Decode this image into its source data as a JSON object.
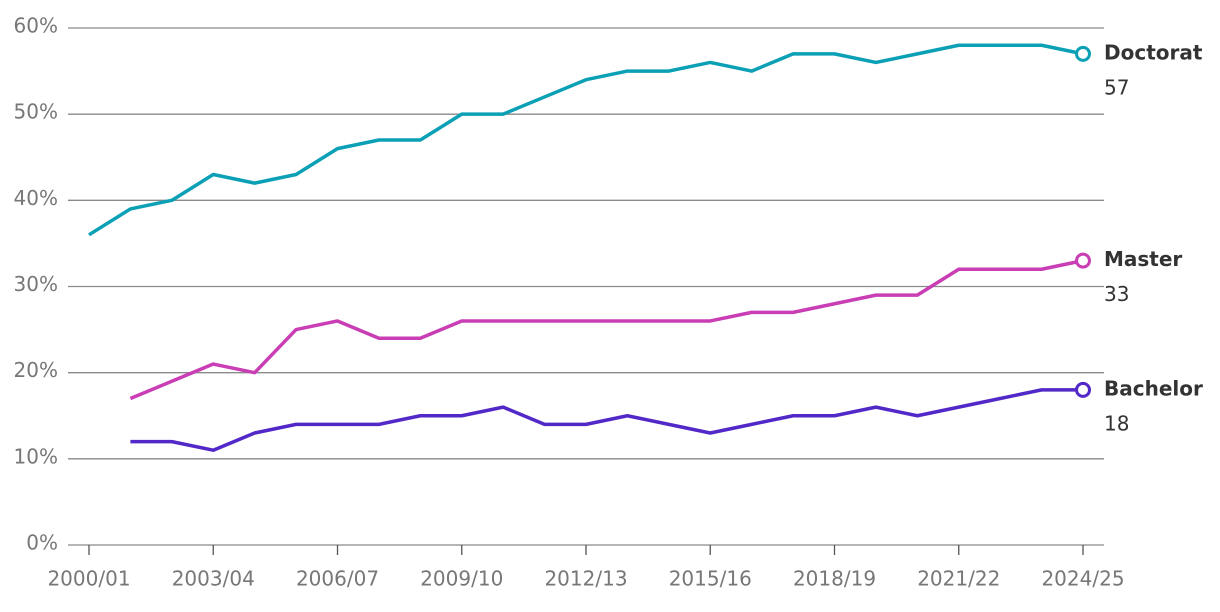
{
  "chart_data": {
    "type": "line",
    "categories": [
      "2000/01",
      null,
      null,
      "2003/04",
      null,
      null,
      "2006/07",
      null,
      null,
      "2009/10",
      null,
      null,
      "2012/13",
      null,
      null,
      "2015/16",
      null,
      null,
      "2018/19",
      null,
      null,
      "2021/22",
      null,
      null,
      "2024/25"
    ],
    "series": [
      {
        "name": "Doctorat",
        "color": "#0ba0b5",
        "values": [
          36,
          39,
          40,
          43,
          42,
          43,
          46,
          47,
          47,
          50,
          50,
          52,
          54,
          55,
          55,
          56,
          55,
          57,
          57,
          56,
          57,
          58,
          58,
          58,
          57
        ]
      },
      {
        "name": "Master",
        "color": "#c93db5",
        "values": [
          null,
          17,
          19,
          21,
          20,
          25,
          26,
          24,
          24,
          26,
          26,
          26,
          26,
          26,
          26,
          26,
          27,
          27,
          28,
          29,
          29,
          32,
          32,
          32,
          33
        ]
      },
      {
        "name": "Bachelor",
        "color": "#5229c8",
        "values": [
          null,
          12,
          12,
          11,
          13,
          14,
          14,
          14,
          15,
          15,
          16,
          14,
          14,
          15,
          14,
          13,
          14,
          15,
          15,
          16,
          15,
          16,
          17,
          18,
          18
        ]
      }
    ],
    "ylim": [
      0,
      60
    ],
    "yticks": [
      {
        "value": 0,
        "label": "0%"
      },
      {
        "value": 10,
        "label": "10%"
      },
      {
        "value": 20,
        "label": "20%"
      },
      {
        "value": 30,
        "label": "30%"
      },
      {
        "value": 40,
        "label": "40%"
      },
      {
        "value": 50,
        "label": "50%"
      },
      {
        "value": 60,
        "label": "60%"
      }
    ],
    "grid": true
  }
}
